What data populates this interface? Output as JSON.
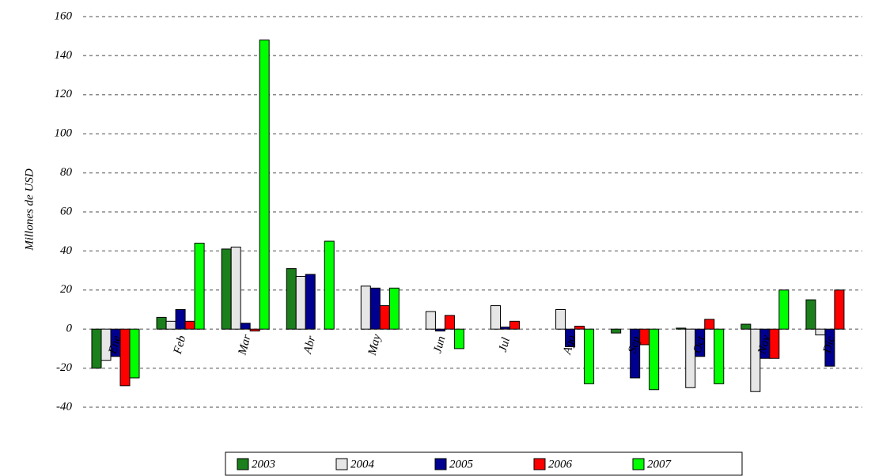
{
  "chart_data": {
    "type": "bar",
    "y_label": "Millones de USD",
    "categories": [
      "Ene",
      "Feb",
      "Mar",
      "Abr",
      "May",
      "Jun",
      "Jul",
      "Ago",
      "Sep",
      "Oct",
      "Nov",
      "Dic"
    ],
    "series": [
      {
        "name": "2003",
        "color": "#1b7f1b",
        "values": [
          -20,
          6,
          41,
          31,
          0,
          0,
          0,
          0,
          -2,
          0.5,
          2.5,
          15
        ]
      },
      {
        "name": "2004",
        "color": "#e6e6e6",
        "values": [
          -16,
          4,
          42,
          27,
          22,
          9,
          12,
          10,
          0,
          -30,
          -32,
          -3
        ]
      },
      {
        "name": "2005",
        "color": "#000090",
        "values": [
          -14,
          10,
          3,
          28,
          21,
          -1,
          1,
          -9,
          -25,
          -14,
          -15,
          -19
        ]
      },
      {
        "name": "2006",
        "color": "#ff0000",
        "values": [
          -29,
          4,
          -1,
          0,
          12,
          7,
          4,
          1.5,
          -8,
          5,
          -15,
          20
        ]
      },
      {
        "name": "2007",
        "color": "#00ff00",
        "values": [
          -25,
          44,
          148,
          45,
          21,
          -10,
          0,
          -28,
          -31,
          -28,
          20,
          0
        ]
      }
    ],
    "ylim": [
      -40,
      160
    ],
    "yticks": [
      -40,
      -20,
      0,
      20,
      40,
      60,
      80,
      100,
      120,
      140,
      160
    ],
    "grid": true
  }
}
